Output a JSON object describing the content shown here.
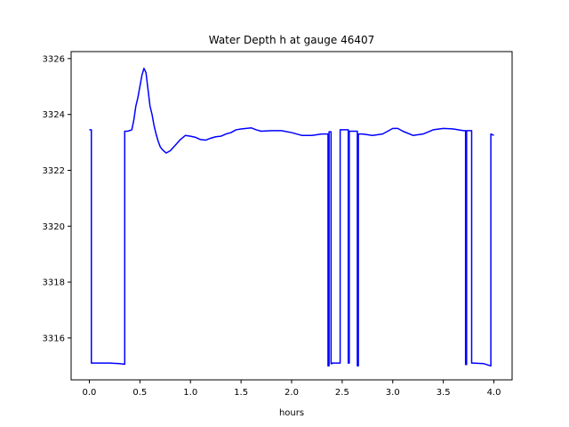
{
  "chart_data": {
    "type": "line",
    "title": "Water Depth h at gauge 46407",
    "xlabel": "hours",
    "ylabel": "",
    "xlim": [
      -0.18,
      4.18
    ],
    "ylim": [
      3314.5,
      3326.25
    ],
    "xticks": [
      0.0,
      0.5,
      1.0,
      1.5,
      2.0,
      2.5,
      3.0,
      3.5,
      4.0
    ],
    "xtick_labels": [
      "0.0",
      "0.5",
      "1.0",
      "1.5",
      "2.0",
      "2.5",
      "3.0",
      "3.5",
      "4.0"
    ],
    "yticks": [
      3316,
      3318,
      3320,
      3322,
      3324,
      3326
    ],
    "ytick_labels": [
      "3316",
      "3318",
      "3320",
      "3322",
      "3324",
      "3326"
    ],
    "grid": false,
    "series": [
      {
        "color": "#0000ff",
        "x": [
          0.0,
          0.02,
          0.02,
          0.1,
          0.2,
          0.3,
          0.34,
          0.35,
          0.35,
          0.38,
          0.42,
          0.44,
          0.46,
          0.48,
          0.5,
          0.52,
          0.54,
          0.56,
          0.57,
          0.58,
          0.6,
          0.62,
          0.64,
          0.66,
          0.68,
          0.7,
          0.72,
          0.74,
          0.76,
          0.8,
          0.85,
          0.9,
          0.95,
          1.0,
          1.05,
          1.1,
          1.15,
          1.2,
          1.25,
          1.3,
          1.35,
          1.4,
          1.45,
          1.5,
          1.55,
          1.6,
          1.65,
          1.7,
          1.8,
          1.9,
          2.0,
          2.1,
          2.2,
          2.3,
          2.36,
          2.36,
          2.37,
          2.37,
          2.39,
          2.39,
          2.4,
          2.4,
          2.48,
          2.48,
          2.56,
          2.56,
          2.57,
          2.57,
          2.65,
          2.65,
          2.66,
          2.66,
          2.7,
          2.8,
          2.9,
          3.0,
          3.05,
          3.1,
          3.2,
          3.3,
          3.4,
          3.5,
          3.6,
          3.7,
          3.72,
          3.72,
          3.73,
          3.73,
          3.78,
          3.78,
          3.79,
          3.79,
          3.9,
          3.97,
          3.97,
          4.0
        ],
        "y": [
          3323.45,
          3323.45,
          3315.1,
          3315.1,
          3315.1,
          3315.08,
          3315.06,
          3315.06,
          3323.4,
          3323.4,
          3323.45,
          3323.8,
          3324.3,
          3324.6,
          3325.0,
          3325.4,
          3325.65,
          3325.5,
          3325.2,
          3324.9,
          3324.3,
          3324.0,
          3323.6,
          3323.3,
          3323.05,
          3322.85,
          3322.75,
          3322.68,
          3322.62,
          3322.7,
          3322.9,
          3323.1,
          3323.25,
          3323.22,
          3323.18,
          3323.1,
          3323.08,
          3323.15,
          3323.2,
          3323.22,
          3323.3,
          3323.35,
          3323.45,
          3323.48,
          3323.5,
          3323.52,
          3323.45,
          3323.4,
          3323.42,
          3323.42,
          3323.35,
          3323.25,
          3323.25,
          3323.3,
          3323.3,
          3315.0,
          3315.0,
          3323.38,
          3323.38,
          3315.08,
          3315.08,
          3315.1,
          3315.1,
          3323.45,
          3323.45,
          3315.1,
          3315.1,
          3323.4,
          3323.4,
          3315.0,
          3315.0,
          3323.3,
          3323.3,
          3323.25,
          3323.3,
          3323.5,
          3323.5,
          3323.4,
          3323.25,
          3323.3,
          3323.45,
          3323.5,
          3323.48,
          3323.42,
          3323.42,
          3315.05,
          3315.05,
          3323.42,
          3323.42,
          3315.1,
          3315.1,
          3315.1,
          3315.08,
          3315.0,
          3323.3,
          3323.25
        ]
      }
    ]
  }
}
